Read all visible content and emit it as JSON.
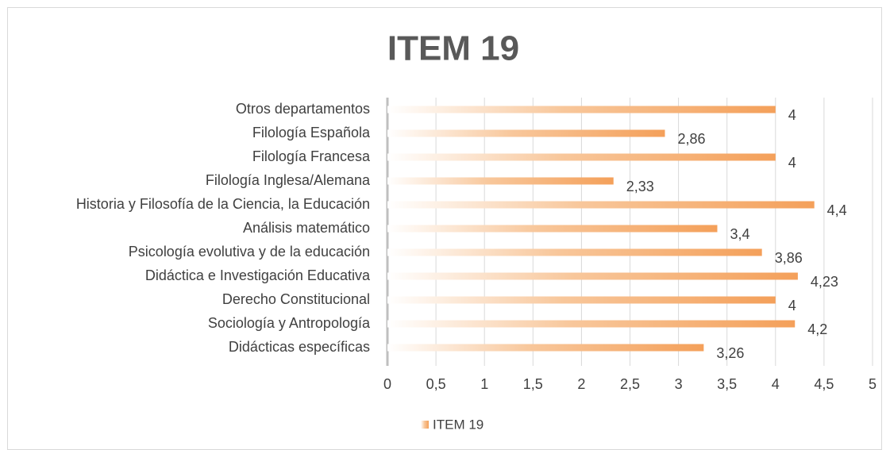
{
  "chart_data": {
    "type": "bar",
    "orientation": "horizontal",
    "title": "ITEM 19",
    "categories": [
      "Otros departamentos",
      "Filología Española",
      "Filología Francesa",
      "Filología Inglesa/Alemana",
      "Historia y Filosofía de la Ciencia, la Educación",
      "Análisis matemático",
      "Psicología evolutiva y de la educación",
      "Didáctica e Investigación Educativa",
      "Derecho Constitucional",
      "Sociología y Antropología",
      "Didácticas específicas"
    ],
    "series": [
      {
        "name": "ITEM 19",
        "color": "#f4a05a",
        "values": [
          4,
          2.86,
          4,
          2.33,
          4.4,
          3.4,
          3.86,
          4.23,
          4,
          4.2,
          3.26
        ],
        "value_labels": [
          "4",
          "2,86",
          "4",
          "2,33",
          "4,4",
          "3,4",
          "3,86",
          "4,23",
          "4",
          "4,2",
          "3,26"
        ]
      }
    ],
    "xlim": [
      0,
      5
    ],
    "xticks": [
      0,
      {
        "value": 0.5,
        "label": "0,5"
      },
      1,
      {
        "value": 1.5,
        "label": "1,5"
      },
      2,
      {
        "value": 2.5,
        "label": "2,5"
      },
      3,
      {
        "value": 3.5,
        "label": "3,5"
      },
      4,
      {
        "value": 4.5,
        "label": "4,5"
      },
      5
    ],
    "grid": true,
    "legend": "bottom"
  }
}
